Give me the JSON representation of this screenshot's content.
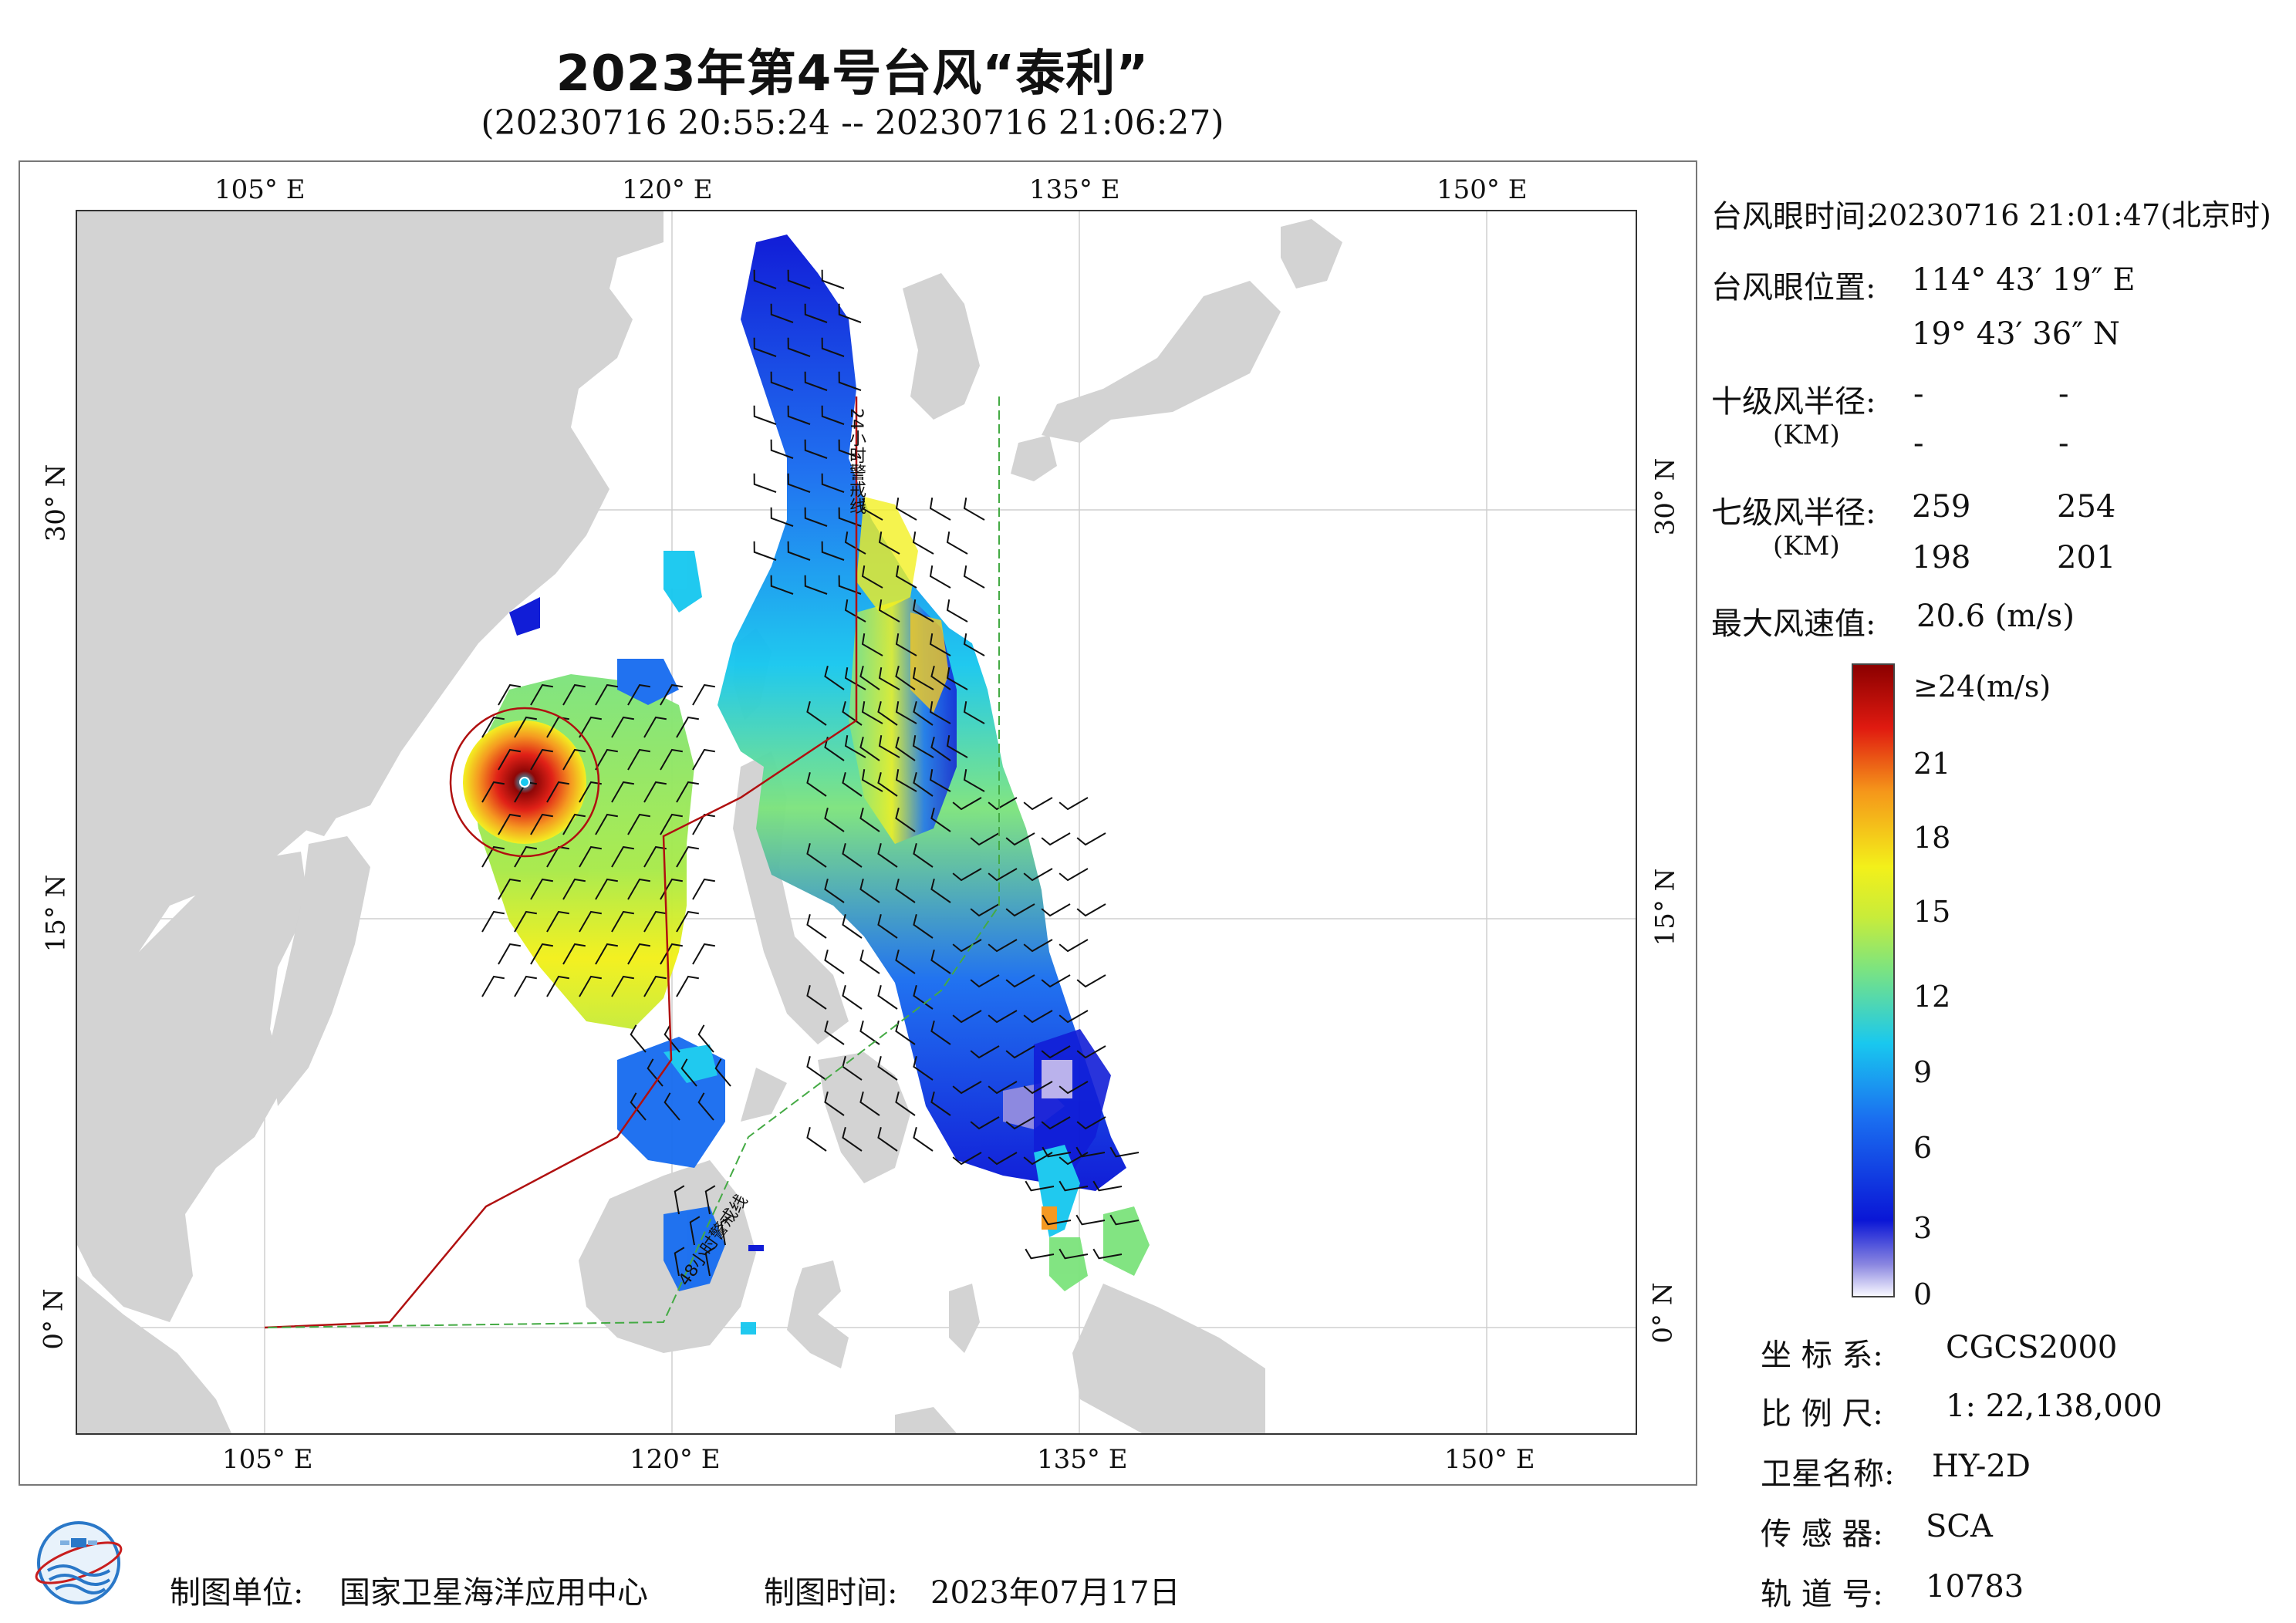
{
  "header": {
    "title": "2023年第4号台风“泰利”",
    "subtitle": "(20230716 20:55:24 -- 20230716 21:06:27)"
  },
  "axes": {
    "lon_ticks": [
      "105° E",
      "120° E",
      "135° E",
      "150° E"
    ],
    "lat_ticks": [
      "30° N",
      "15° N",
      "0° N"
    ],
    "lon_range": [
      98,
      155
    ],
    "lat_range": [
      -4,
      41
    ]
  },
  "map_labels": {
    "warn_24h": "24小时警戒线",
    "warn_48h": "48小时警戒线"
  },
  "info": {
    "eye_time_label": "台风眼时间:",
    "eye_time_value": "20230716 21:01:47(北京时)",
    "eye_pos_label": "台风眼位置:",
    "eye_lon": "114° 43′ 19″ E",
    "eye_lat": "19° 43′ 36″ N",
    "r10_label": "十级风半径:",
    "r10_unit": "(KM)",
    "r10_values": [
      "-",
      "-",
      "-",
      "-"
    ],
    "r7_label": "七级风半径:",
    "r7_unit": "(KM)",
    "r7_values": [
      "259",
      "254",
      "198",
      "201"
    ],
    "max_wind_label": "最大风速值:",
    "max_wind_value": "20.6 (m/s)"
  },
  "colorbar": {
    "labels": [
      "≥24(m/s)",
      "21",
      "18",
      "15",
      "12",
      "9",
      "6",
      "3",
      "0"
    ],
    "stops": [
      "#f8f8ff",
      "#6a5acd",
      "#0a16d6",
      "#1a6ef0",
      "#19c8ef",
      "#7ee47e",
      "#f3f01a",
      "#f5961a",
      "#e01a10",
      "#8b0000"
    ]
  },
  "meta": {
    "crs_label": "坐 标 系:",
    "crs_value": "CGCS2000",
    "scale_label": "比 例 尺:",
    "scale_value": "1: 22,138,000",
    "sat_label": "卫星名称:",
    "sat_value": "HY-2D",
    "sensor_label": "传 感 器:",
    "sensor_value": "SCA",
    "orbit_label": "轨 道 号:",
    "orbit_value": "10783"
  },
  "footer": {
    "unit_label": "制图单位:",
    "unit_value": "国家卫星海洋应用中心",
    "date_label": "制图时间:",
    "date_value": "2023年07月17日"
  },
  "colors": {
    "land": "#d3d3d3",
    "warn24": "#b01010",
    "warn48": "#44aa44"
  }
}
